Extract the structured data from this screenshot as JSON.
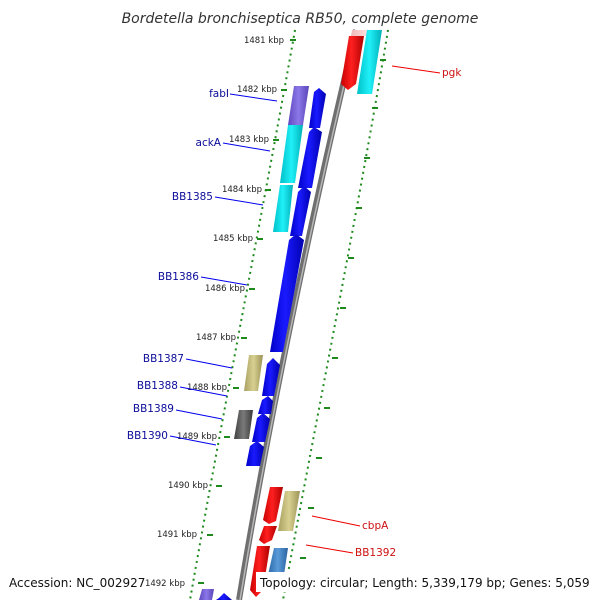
{
  "title": "Bordetella bronchiseptica RB50, complete genome",
  "footer": {
    "accession": "Accession: NC_002927",
    "topology": "Topology: circular; Length: 5,339,179 bp; Genes: 5,059"
  },
  "kbp_ticks": [
    "1481 kbp",
    "1482 kbp",
    "1483 kbp",
    "1484 kbp",
    "1485 kbp",
    "1486 kbp",
    "1487 kbp",
    "1488 kbp",
    "1489 kbp",
    "1490 kbp",
    "1491 kbp",
    "1492 kbp"
  ],
  "gene_labels_left": [
    "fabI",
    "ackA",
    "BB1385",
    "BB1386",
    "BB1387",
    "BB1388",
    "BB1389",
    "BB1390"
  ],
  "gene_labels_right": [
    "pgk",
    "cbpA",
    "BB1392"
  ],
  "colors": {
    "backbone": "#7a7a7a",
    "tick_green": "#1e8a1e",
    "forward": "#0000ee",
    "reverse": "#ee0000",
    "cyan": "#00d8e0",
    "purple": "#7a5fd8",
    "khaki": "#bdb76b",
    "gray": "#555555",
    "steel": "#3a7ebf",
    "label_blue": "#0b0b9a",
    "label_red": "#cc1010"
  }
}
